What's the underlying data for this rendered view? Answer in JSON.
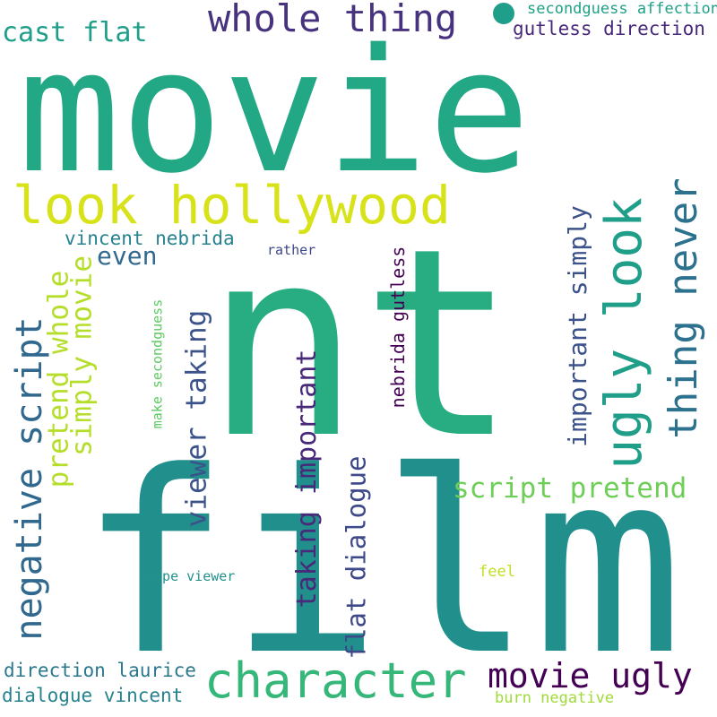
{
  "words": [
    {
      "id": "movie",
      "text": "movie",
      "color": "#22a884",
      "orientation": "horizontal"
    },
    {
      "id": "nt",
      "text": "nt",
      "color": "#27ad81",
      "orientation": "horizontal"
    },
    {
      "id": "film",
      "text": "film",
      "color": "#21908d",
      "orientation": "horizontal"
    },
    {
      "id": "look-hollywood",
      "text": "look hollywood",
      "color": "#d8e219",
      "orientation": "horizontal"
    },
    {
      "id": "whole-thing",
      "text": "whole thing",
      "color": "#46327e",
      "orientation": "horizontal"
    },
    {
      "id": "character",
      "text": "character",
      "color": "#35b779",
      "orientation": "horizontal"
    },
    {
      "id": "movie-ugly",
      "text": "movie ugly",
      "color": "#440154",
      "orientation": "horizontal"
    },
    {
      "id": "ugly-look",
      "text": "ugly look",
      "color": "#1f9e89",
      "orientation": "vertical"
    },
    {
      "id": "thing-never",
      "text": "thing never",
      "color": "#2c728e",
      "orientation": "vertical"
    },
    {
      "id": "script-pretend",
      "text": "script pretend",
      "color": "#6ece58",
      "orientation": "horizontal"
    },
    {
      "id": "negative-script",
      "text": "negative script",
      "color": "#31688e",
      "orientation": "vertical"
    },
    {
      "id": "cast-flat",
      "text": "cast flat",
      "color": "#1f9e89",
      "orientation": "horizontal"
    },
    {
      "id": "pretend-whole",
      "text": "pretend whole",
      "color": "#b5de2b",
      "orientation": "vertical"
    },
    {
      "id": "simply-movie",
      "text": "simply movie",
      "color": "#b5de2b",
      "orientation": "vertical"
    },
    {
      "id": "viewer-taking",
      "text": "viewer taking",
      "color": "#3b528b",
      "orientation": "vertical"
    },
    {
      "id": "taking-important",
      "text": "taking important",
      "color": "#482878",
      "orientation": "vertical"
    },
    {
      "id": "flat-dialogue",
      "text": "flat dialogue",
      "color": "#3e4989",
      "orientation": "vertical"
    },
    {
      "id": "important-simply",
      "text": "important simply",
      "color": "#3b528b",
      "orientation": "vertical"
    },
    {
      "id": "even",
      "text": "even",
      "color": "#31688e",
      "orientation": "horizontal"
    },
    {
      "id": "vincent-nebrida",
      "text": "vincent nebrida",
      "color": "#26828e",
      "orientation": "horizontal"
    },
    {
      "id": "gutless-direction",
      "text": "gutless direction",
      "color": "#482878",
      "orientation": "horizontal"
    },
    {
      "id": "secondguess-affection",
      "text": "secondguess affection",
      "color": "#1fa188",
      "orientation": "horizontal"
    },
    {
      "id": "nebrida-gutless",
      "text": "nebrida gutless",
      "color": "#440154",
      "orientation": "vertical"
    },
    {
      "id": "make-secondguess",
      "text": "make secondguess",
      "color": "#5ec962",
      "orientation": "vertical"
    },
    {
      "id": "rather",
      "text": "rather",
      "color": "#3e4989",
      "orientation": "horizontal"
    },
    {
      "id": "dupe-viewer",
      "text": "dupe viewer",
      "color": "#21918c",
      "orientation": "horizontal"
    },
    {
      "id": "feel",
      "text": "feel",
      "color": "#c2df23",
      "orientation": "horizontal"
    },
    {
      "id": "direction-laurice",
      "text": "direction laurice",
      "color": "#2a788e",
      "orientation": "horizontal"
    },
    {
      "id": "dialogue-vincent",
      "text": "dialogue vincent",
      "color": "#26828e",
      "orientation": "horizontal"
    },
    {
      "id": "burn-negative",
      "text": "burn negative",
      "color": "#a0da39",
      "orientation": "horizontal"
    }
  ],
  "dot_color": "#1f9e89"
}
